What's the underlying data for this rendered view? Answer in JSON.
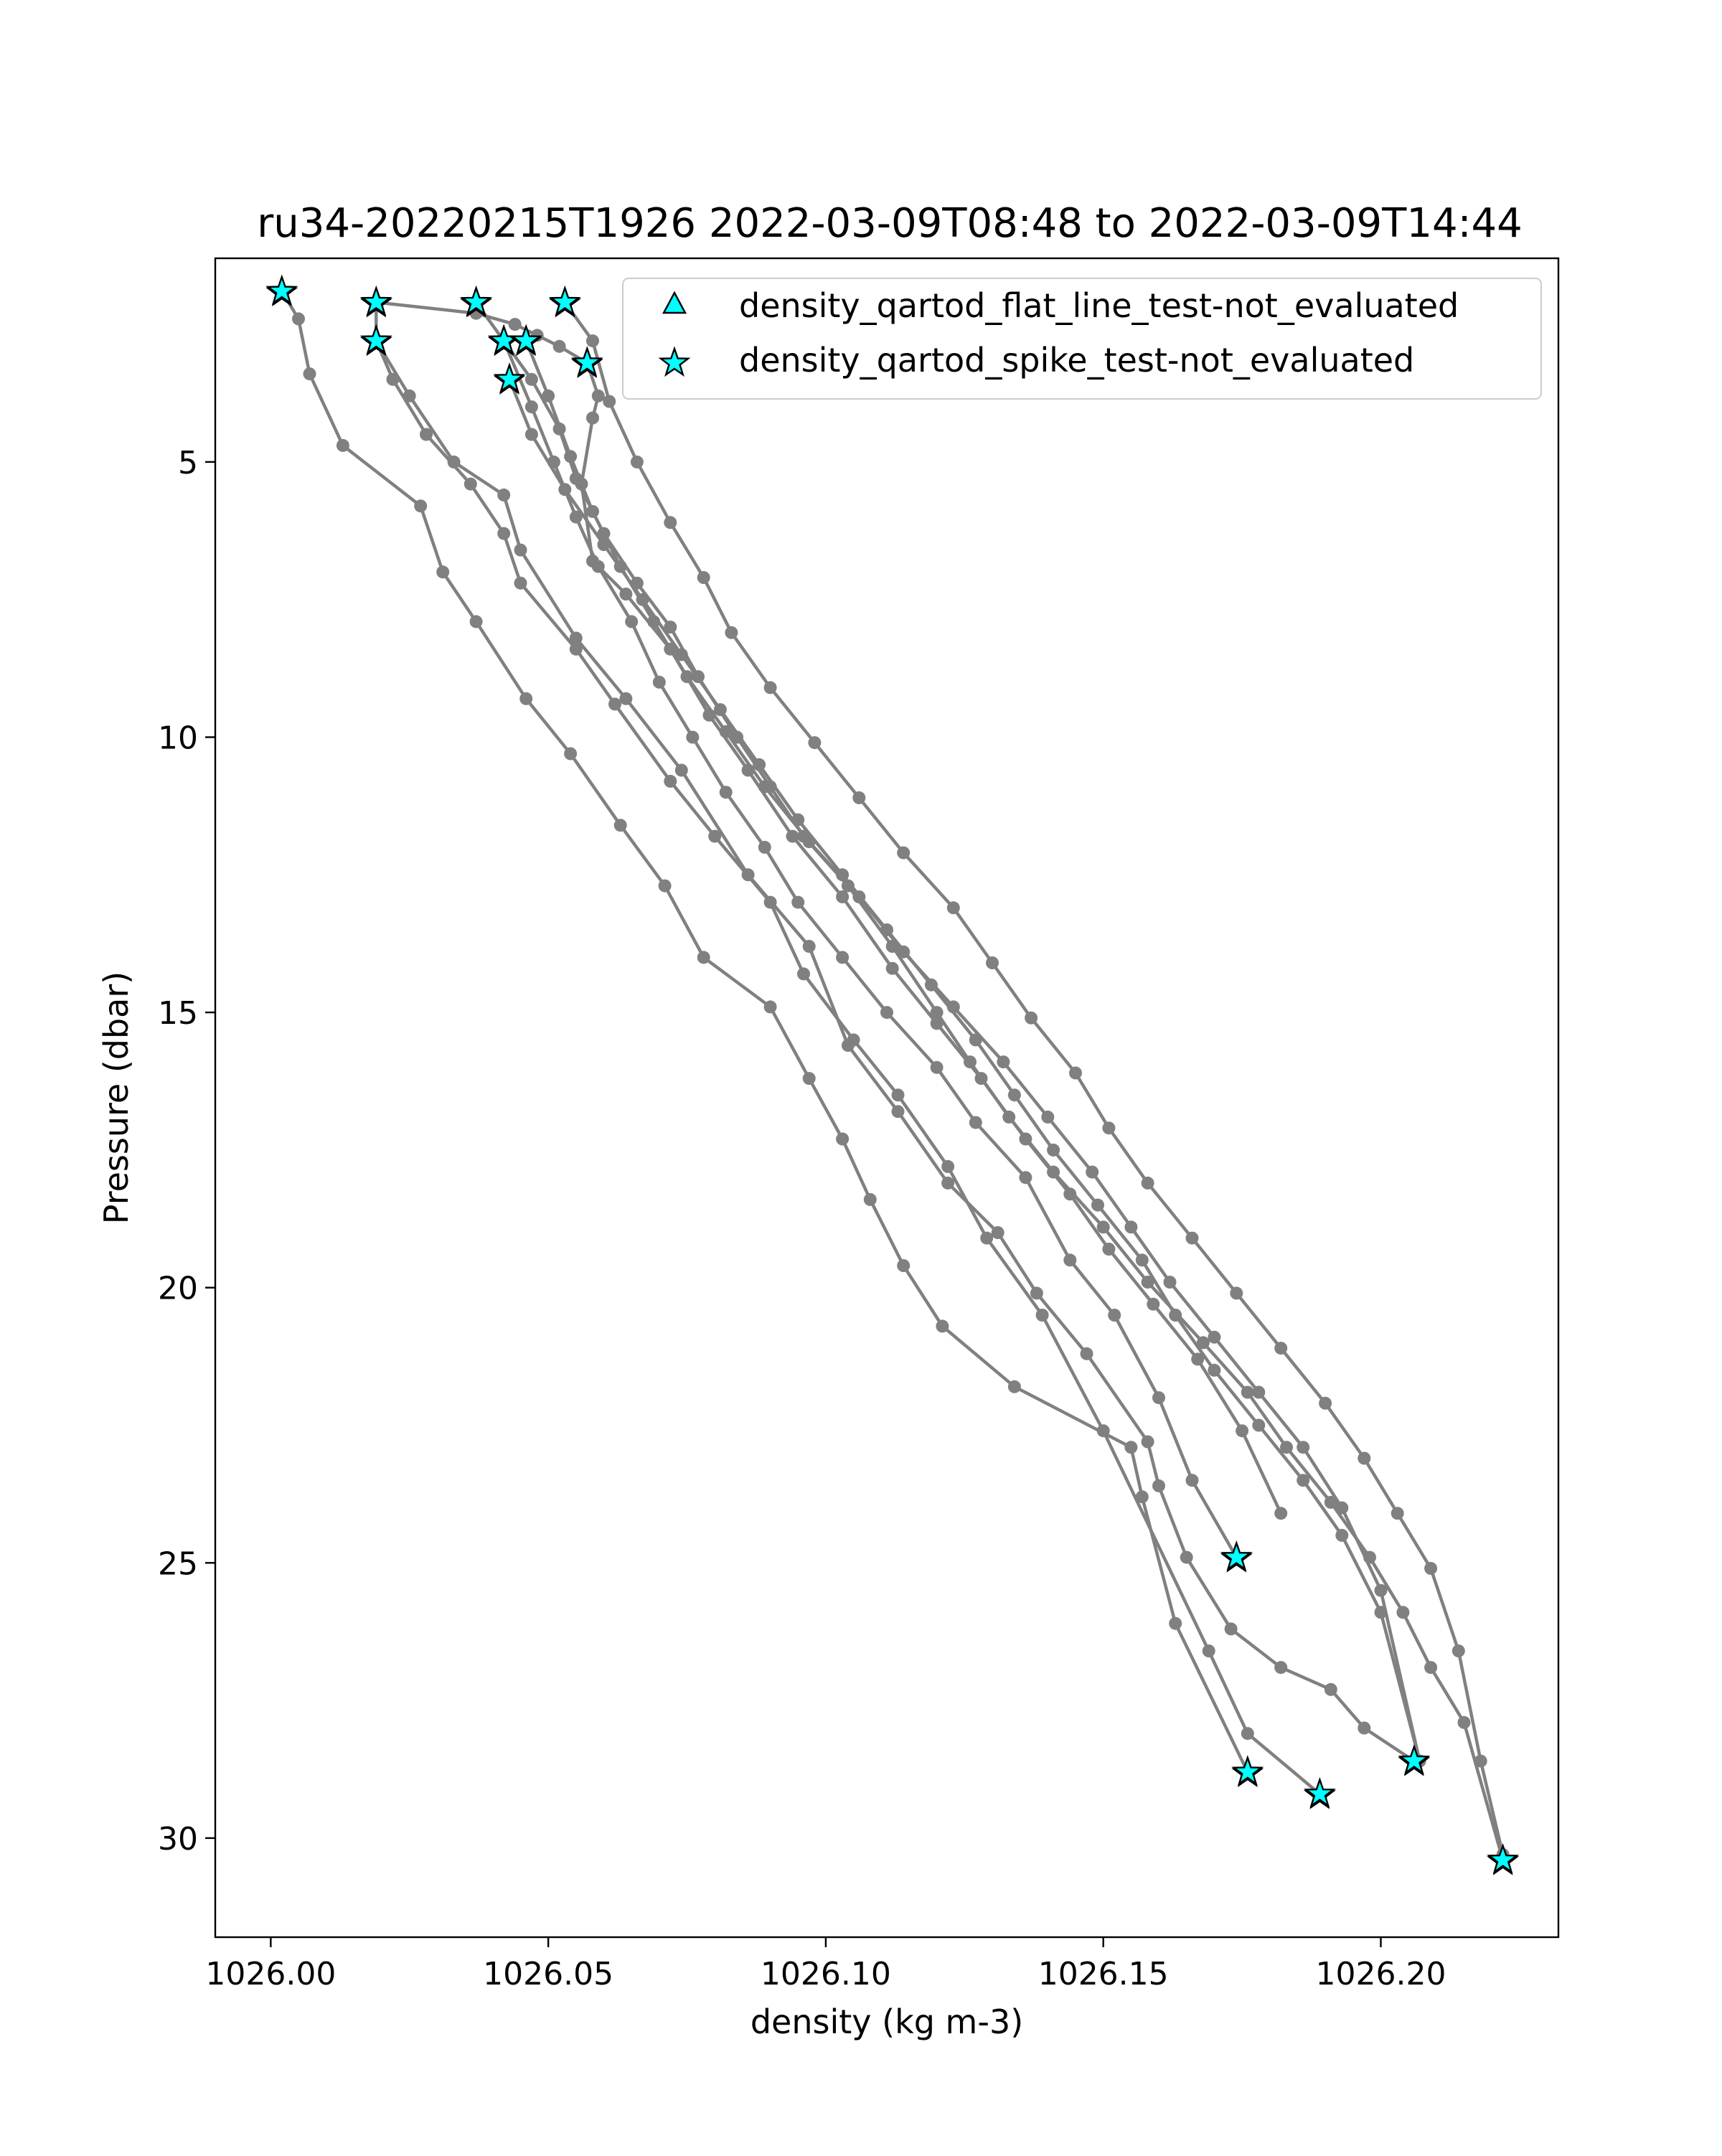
{
  "chart_data": {
    "type": "line",
    "title": "ru34-20220215T1926 2022-03-09T08:48 to 2022-03-09T14:44",
    "xlabel": "density (kg m-3)",
    "ylabel": "Pressure (dbar)",
    "xlim": [
      1025.99,
      1026.232
    ],
    "ylim": [
      31.8,
      1.3
    ],
    "y_inverted": true,
    "grid": false,
    "xticks": [
      1026.0,
      1026.05,
      1026.1,
      1026.15,
      1026.2
    ],
    "xtick_labels": [
      "1026.00",
      "1026.05",
      "1026.10",
      "1026.15",
      "1026.20"
    ],
    "yticks": [
      5,
      10,
      15,
      20,
      25,
      30
    ],
    "ytick_labels": [
      "5",
      "10",
      "15",
      "20",
      "25",
      "30"
    ],
    "line_color": "#808080",
    "marker_color": "#00ffff",
    "legend": {
      "placement": "top-right",
      "entries": [
        {
          "label": "density_qartod_flat_line_test-not_evaluated",
          "marker": "triangle"
        },
        {
          "label": "density_qartod_spike_test-not_evaluated",
          "marker": "star"
        }
      ]
    },
    "series": [
      {
        "x": [
          1026.002,
          1026.005,
          1026.007,
          1026.013,
          1026.027,
          1026.031,
          1026.037,
          1026.046,
          1026.054,
          1026.063,
          1026.071,
          1026.078,
          1026.09,
          1026.097,
          1026.103,
          1026.108,
          1026.114,
          1026.121,
          1026.134,
          1026.155,
          1026.157,
          1026.163,
          1026.176
        ],
        "y": [
          1.9,
          2.4,
          3.4,
          4.7,
          5.8,
          7.0,
          7.9,
          9.3,
          10.3,
          11.6,
          12.7,
          14.0,
          14.9,
          16.2,
          17.3,
          18.4,
          19.6,
          20.7,
          21.8,
          22.9,
          23.8,
          26.1,
          28.8
        ],
        "flags": [
          {
            "index": 0,
            "test": "spike"
          },
          {
            "index": 22,
            "test": "spike"
          }
        ]
      },
      {
        "x": [
          1026.019,
          1026.019,
          1026.022,
          1026.028,
          1026.036,
          1026.042,
          1026.045,
          1026.055,
          1026.062,
          1026.072,
          1026.08,
          1026.09,
          1026.096,
          1026.105,
          1026.113,
          1026.122,
          1026.129,
          1026.139,
          1026.15,
          1026.169,
          1026.176,
          1026.189
        ],
        "y": [
          2.1,
          2.8,
          3.5,
          4.5,
          5.4,
          6.3,
          7.2,
          8.4,
          9.4,
          10.8,
          11.8,
          13.0,
          14.3,
          15.5,
          16.5,
          17.8,
          19.1,
          20.5,
          22.6,
          26.6,
          28.1,
          29.2
        ],
        "flags": [
          {
            "index": 0,
            "test": "spike"
          },
          {
            "index": 21,
            "test": "spike"
          }
        ]
      },
      {
        "x": [
          1026.019,
          1026.025,
          1026.033,
          1026.042,
          1026.045,
          1026.055,
          1026.064,
          1026.074,
          1026.086,
          1026.097,
          1026.104,
          1026.113,
          1026.122,
          1026.131,
          1026.138,
          1026.147,
          1026.158,
          1026.16,
          1026.165,
          1026.173,
          1026.182,
          1026.191,
          1026.197,
          1026.206
        ],
        "y": [
          2.8,
          3.8,
          5.0,
          5.6,
          6.6,
          8.2,
          9.3,
          10.6,
          12.5,
          13.8,
          15.6,
          16.8,
          18.1,
          19.0,
          20.1,
          21.2,
          22.8,
          23.6,
          24.9,
          26.2,
          26.9,
          27.3,
          28.0,
          28.6
        ],
        "flags": [
          {
            "index": 0,
            "test": "spike"
          },
          {
            "index": 23,
            "test": "spike"
          }
        ]
      },
      {
        "x": [
          1026.037,
          1026.042,
          1026.047,
          1026.052,
          1026.055,
          1026.06,
          1026.066,
          1026.072,
          1026.077,
          1026.084,
          1026.09,
          1026.096,
          1026.104,
          1026.112,
          1026.12,
          1026.126,
          1026.133,
          1026.141,
          1026.15,
          1026.158,
          1026.168,
          1026.176,
          1026.183,
          1026.191,
          1026.198,
          1026.204,
          1026.209,
          1026.215,
          1026.222
        ],
        "y": [
          2.1,
          2.8,
          3.5,
          4.4,
          5.3,
          6.3,
          7.2,
          8.0,
          8.9,
          10.0,
          10.9,
          11.8,
          12.7,
          13.8,
          15.0,
          15.9,
          16.9,
          17.9,
          18.9,
          19.9,
          21.0,
          21.9,
          22.9,
          23.9,
          24.9,
          25.9,
          26.9,
          27.9,
          30.4
        ],
        "flags": [
          {
            "index": 0,
            "test": "spike"
          },
          {
            "index": 28,
            "test": "spike"
          }
        ]
      },
      {
        "x": [
          1026.042,
          1026.047,
          1026.051,
          1026.055,
          1026.059,
          1026.065,
          1026.07,
          1026.076,
          1026.082,
          1026.089,
          1026.095,
          1026.103,
          1026.111,
          1026.12,
          1026.127,
          1026.136,
          1026.144,
          1026.152,
          1026.16,
          1026.166,
          1026.174
        ],
        "y": [
          2.8,
          4.0,
          5.0,
          6.0,
          6.9,
          7.9,
          9.0,
          10.0,
          11.0,
          12.0,
          13.0,
          14.0,
          15.0,
          16.0,
          17.0,
          18.0,
          19.5,
          20.5,
          22.0,
          23.5,
          24.9
        ],
        "flags": [
          {
            "index": 0,
            "test": "spike"
          },
          {
            "index": 20,
            "test": "spike"
          }
        ]
      },
      {
        "x": [
          1026.046,
          1026.05,
          1026.054,
          1026.058,
          1026.063,
          1026.069,
          1026.075,
          1026.082,
          1026.089,
          1026.097,
          1026.106,
          1026.114,
          1026.123,
          1026.132,
          1026.14,
          1026.148,
          1026.155,
          1026.162,
          1026.17,
          1026.178,
          1026.186,
          1026.193,
          1026.2,
          1026.207
        ],
        "y": [
          2.8,
          3.8,
          4.9,
          5.9,
          6.9,
          7.9,
          8.9,
          9.9,
          10.9,
          11.9,
          12.9,
          13.9,
          14.9,
          15.9,
          16.9,
          17.9,
          18.9,
          19.9,
          20.9,
          21.9,
          22.9,
          24.0,
          25.5,
          28.6
        ],
        "flags": [
          {
            "index": 0,
            "test": "spike"
          }
        ]
      },
      {
        "x": [
          1026.053,
          1026.058,
          1026.061,
          1026.066,
          1026.072,
          1026.078,
          1026.083,
          1026.09,
          1026.098,
          1026.106,
          1026.114,
          1026.123,
          1026.13,
          1026.137,
          1026.145,
          1026.151,
          1026.158,
          1026.166,
          1026.174,
          1026.182,
          1026.19,
          1026.197,
          1026.203,
          1026.209,
          1026.214,
          1026.218,
          1026.222
        ],
        "y": [
          2.1,
          2.8,
          3.9,
          5.0,
          6.1,
          7.1,
          8.1,
          9.1,
          10.1,
          11.1,
          12.1,
          13.1,
          14.1,
          15.1,
          16.1,
          17.1,
          18.1,
          19.1,
          20.1,
          21.1,
          22.1,
          23.1,
          24.1,
          25.1,
          26.6,
          28.6,
          30.3
        ],
        "flags": [
          {
            "index": 0,
            "test": "spike"
          }
        ]
      },
      {
        "x": [
          1026.057,
          1026.059,
          1026.058,
          1026.056,
          1026.058,
          1026.064,
          1026.072,
          1026.079,
          1026.086,
          1026.094,
          1026.103,
          1026.112,
          1026.12,
          1026.128,
          1026.136,
          1026.144,
          1026.151,
          1026.159,
          1026.167,
          1026.175,
          1026.182
        ],
        "y": [
          3.2,
          3.8,
          4.2,
          5.4,
          6.8,
          7.4,
          8.4,
          9.6,
          10.6,
          11.8,
          12.9,
          14.2,
          15.2,
          16.2,
          17.3,
          18.3,
          19.3,
          20.3,
          21.3,
          22.6,
          24.1
        ],
        "flags": [
          {
            "index": 0,
            "test": "spike"
          }
        ]
      },
      {
        "x": [
          1026.043,
          1026.047,
          1026.053,
          1026.06,
          1026.067,
          1026.074,
          1026.081,
          1026.088,
          1026.095,
          1026.103,
          1026.111,
          1026.119,
          1026.127,
          1026.134,
          1026.141,
          1026.149,
          1026.157,
          1026.163,
          1026.17,
          1026.178,
          1026.186,
          1026.193,
          1026.2,
          1026.207
        ],
        "y": [
          3.5,
          4.5,
          5.5,
          6.5,
          7.5,
          8.5,
          9.5,
          10.5,
          11.5,
          12.5,
          13.5,
          14.5,
          15.5,
          16.5,
          17.5,
          18.5,
          19.5,
          20.5,
          21.5,
          22.5,
          23.5,
          24.5,
          25.9,
          28.6
        ],
        "flags": [
          {
            "index": 0,
            "test": "spike"
          }
        ]
      },
      {
        "x": [
          1026.019,
          1026.037,
          1026.044,
          1026.048,
          1026.052,
          1026.057
        ],
        "y": [
          2.1,
          2.3,
          2.5,
          2.7,
          2.9,
          3.2
        ],
        "flags": []
      }
    ]
  }
}
